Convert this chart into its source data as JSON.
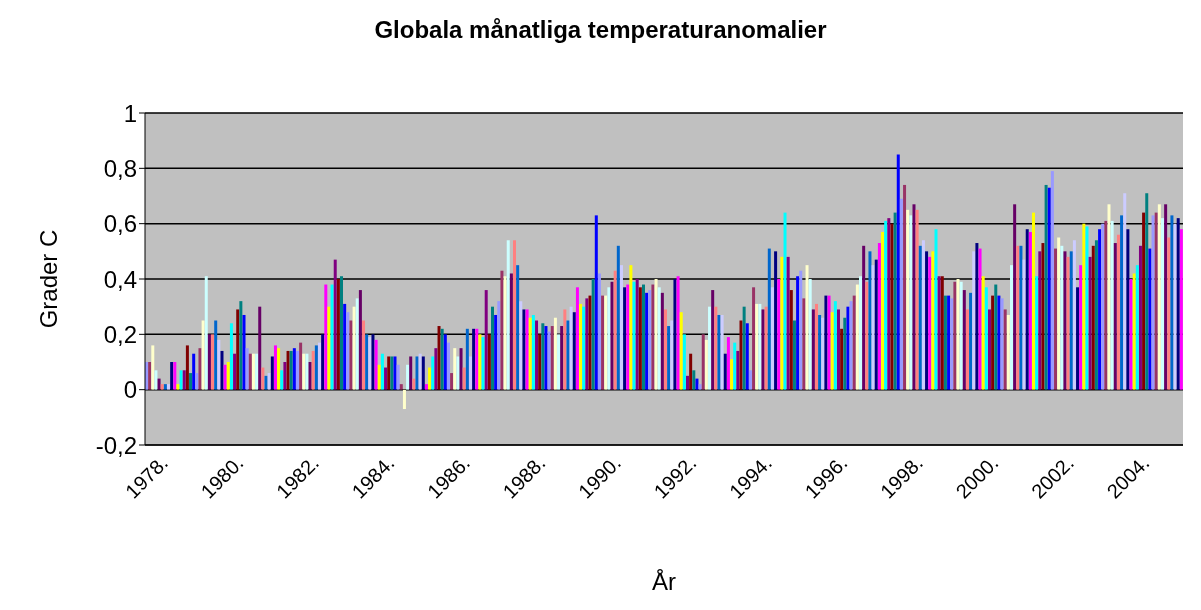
{
  "chart_data": {
    "type": "bar",
    "title": "Globala månatliga temperaturanomalier",
    "xlabel": "År",
    "ylabel": "Grader C",
    "categories": [
      "1978.",
      null,
      null,
      null,
      null,
      null,
      null,
      null,
      null,
      null,
      null,
      null,
      null,
      null,
      null,
      null,
      null,
      null,
      null,
      null,
      null,
      null,
      null,
      null,
      "1980.",
      null,
      null,
      null,
      null,
      null,
      null,
      null,
      null,
      null,
      null,
      null,
      null,
      null,
      null,
      null,
      null,
      null,
      null,
      null,
      null,
      null,
      null,
      null,
      "1982.",
      null,
      null,
      null,
      null,
      null,
      null,
      null,
      null,
      null,
      null,
      null,
      null,
      null,
      null,
      null,
      null,
      null,
      null,
      null,
      null,
      null,
      null,
      null,
      "1984.",
      null,
      null,
      null,
      null,
      null,
      null,
      null,
      null,
      null,
      null,
      null,
      null,
      null,
      null,
      null,
      null,
      null,
      null,
      null,
      null,
      null,
      null,
      null,
      "1986.",
      null,
      null,
      null,
      null,
      null,
      null,
      null,
      null,
      null,
      null,
      null,
      null,
      null,
      null,
      null,
      null,
      null,
      null,
      null,
      null,
      null,
      null,
      null,
      "1988.",
      null,
      null,
      null,
      null,
      null,
      null,
      null,
      null,
      null,
      null,
      null,
      null,
      null,
      null,
      null,
      null,
      null,
      null,
      null,
      null,
      null,
      null,
      null,
      "1990.",
      null,
      null,
      null,
      null,
      null,
      null,
      null,
      null,
      null,
      null,
      null,
      null,
      null,
      null,
      null,
      null,
      null,
      null,
      null,
      null,
      null,
      null,
      null,
      "1992.",
      null,
      null,
      null,
      null,
      null,
      null,
      null,
      null,
      null,
      null,
      null,
      null,
      null,
      null,
      null,
      null,
      null,
      null,
      null,
      null,
      null,
      null,
      null,
      "1994.",
      null,
      null,
      null,
      null,
      null,
      null,
      null,
      null,
      null,
      null,
      null,
      null,
      null,
      null,
      null,
      null,
      null,
      null,
      null,
      null,
      null,
      null,
      null,
      "1996.",
      null,
      null,
      null,
      null,
      null,
      null,
      null,
      null,
      null,
      null,
      null,
      null,
      null,
      null,
      null,
      null,
      null,
      null,
      null,
      null,
      null,
      null,
      null,
      "1998.",
      null,
      null,
      null,
      null,
      null,
      null,
      null,
      null,
      null,
      null,
      null,
      null,
      null,
      null,
      null,
      null,
      null,
      null,
      null,
      null,
      null,
      null,
      null,
      "2000.",
      null,
      null,
      null,
      null,
      null,
      null,
      null,
      null,
      null,
      null,
      null,
      null,
      null,
      null,
      null,
      null,
      null,
      null,
      null,
      null,
      null,
      null,
      null,
      "2002.",
      null,
      null,
      null,
      null,
      null,
      null,
      null,
      null,
      null,
      null,
      null,
      null,
      null,
      null,
      null,
      null,
      null,
      null,
      null,
      null,
      null,
      null,
      null,
      "2004.",
      null,
      null,
      null,
      null,
      null,
      null,
      null,
      null,
      null,
      null,
      null,
      null,
      null,
      null,
      null,
      null,
      null
    ],
    "values": [
      0.1,
      0.1,
      0.16,
      0.07,
      0.04,
      0.02,
      0.02,
      0.02,
      0.1,
      0.1,
      0.02,
      0.07,
      0.07,
      0.16,
      0.06,
      0.13,
      0.06,
      0.15,
      0.25,
      0.41,
      0.2,
      0.2,
      0.25,
      0.18,
      0.14,
      0.09,
      0.1,
      0.24,
      0.13,
      0.29,
      0.32,
      0.27,
      0.15,
      0.13,
      0.13,
      0.13,
      0.3,
      0.08,
      0.05,
      0.06,
      0.12,
      0.16,
      0.15,
      0.07,
      0.1,
      0.14,
      0.14,
      0.15,
      0.14,
      0.17,
      0.13,
      0.13,
      0.1,
      0.14,
      0.16,
      0.17,
      0.2,
      0.38,
      0.3,
      0.38,
      0.47,
      0.4,
      0.41,
      0.31,
      0.28,
      0.25,
      0.3,
      0.33,
      0.36,
      0.25,
      0.2,
      0.19,
      0.2,
      0.18,
      0.09,
      0.13,
      0.08,
      0.12,
      0.12,
      0.12,
      0.09,
      0.02,
      -0.07,
      0.09,
      0.12,
      0.04,
      0.12,
      0.13,
      0.12,
      0.02,
      0.08,
      0.12,
      0.15,
      0.23,
      0.22,
      0.2,
      0.17,
      0.06,
      0.15,
      0.12,
      0.15,
      0.08,
      0.22,
      0.12,
      0.22,
      0.22,
      0.2,
      0.19,
      0.36,
      0.2,
      0.3,
      0.27,
      0.32,
      0.43,
      0.41,
      0.54,
      0.42,
      0.54,
      0.45,
      0.32,
      0.29,
      0.29,
      0.26,
      0.27,
      0.25,
      0.2,
      0.24,
      0.23,
      0.21,
      0.23,
      0.26,
      0.2,
      0.23,
      0.29,
      0.25,
      0.3,
      0.28,
      0.37,
      0.31,
      0.3,
      0.33,
      0.34,
      0.4,
      0.63,
      0.42,
      0.34,
      0.34,
      0.37,
      0.39,
      0.43,
      0.52,
      0.45,
      0.37,
      0.38,
      0.45,
      0.39,
      0.4,
      0.37,
      0.38,
      0.35,
      0.36,
      0.38,
      0.4,
      0.37,
      0.35,
      0.29,
      0.23,
      0.25,
      0.4,
      0.41,
      0.28,
      0.2,
      0.05,
      0.13,
      0.07,
      0.04,
      0.02,
      0.2,
      0.18,
      0.3,
      0.36,
      0.3,
      0.27,
      0.27,
      0.13,
      0.19,
      0.11,
      0.17,
      0.14,
      0.25,
      0.3,
      0.24,
      0.07,
      0.37,
      0.31,
      0.31,
      0.29,
      0.3,
      0.51,
      0.37,
      0.5,
      0.4,
      0.48,
      0.64,
      0.48,
      0.36,
      0.25,
      0.41,
      0.43,
      0.33,
      0.45,
      0.4,
      0.29,
      0.31,
      0.27,
      0.26,
      0.34,
      0.34,
      0.28,
      0.32,
      0.29,
      0.22,
      0.26,
      0.3,
      0.32,
      0.34,
      0.38,
      0.41,
      0.52,
      0.39,
      0.5,
      0.45,
      0.47,
      0.53,
      0.57,
      0.61,
      0.62,
      0.6,
      0.64,
      0.85,
      0.69,
      0.74,
      0.65,
      0.63,
      0.67,
      0.65,
      0.52,
      0.54,
      0.5,
      0.48,
      0.5,
      0.58,
      0.41,
      0.41,
      0.34,
      0.34,
      0.33,
      0.39,
      0.4,
      0.39,
      0.36,
      0.29,
      0.35,
      0.5,
      0.53,
      0.51,
      0.41,
      0.37,
      0.29,
      0.34,
      0.38,
      0.34,
      0.33,
      0.29,
      0.27,
      0.45,
      0.67,
      0.52,
      0.52,
      0.47,
      0.58,
      0.57,
      0.64,
      0.41,
      0.5,
      0.53,
      0.74,
      0.73,
      0.79,
      0.51,
      0.55,
      0.52,
      0.5,
      0.48,
      0.5,
      0.54,
      0.37,
      0.45,
      0.6,
      0.59,
      0.48,
      0.52,
      0.54,
      0.58,
      0.6,
      0.61,
      0.67,
      0.61,
      0.53,
      0.56,
      0.63,
      0.71,
      0.58,
      0.4,
      0.42,
      0.45,
      0.52,
      0.64,
      0.71,
      0.51,
      0.63,
      0.64,
      0.67,
      0.62,
      0.67,
      0.55,
      0.63,
      0.6,
      0.62,
      0.58
    ],
    "colors": [
      "#9999ff",
      "#993366",
      "#ffffcc",
      "#ccffff",
      "#660066",
      "#ff8080",
      "#0066cc",
      "#ccccff",
      "#000080",
      "#ff00ff",
      "#ffff00",
      "#00ffff",
      "#800080",
      "#800000",
      "#008080",
      "#0000ff",
      "#9999ff",
      "#993366",
      "#ffffcc",
      "#ccffff",
      "#660066",
      "#ff8080",
      "#0066cc",
      "#ccccff",
      "#000080",
      "#ff00ff",
      "#ffff00",
      "#00ffff",
      "#800080",
      "#800000",
      "#008080",
      "#0000ff",
      "#9999ff",
      "#993366",
      "#ffffcc",
      "#ccffff",
      "#660066",
      "#ff8080",
      "#0066cc",
      "#ccccff",
      "#000080",
      "#ff00ff",
      "#ffff00",
      "#00ffff",
      "#800080",
      "#800000",
      "#008080",
      "#0000ff",
      "#9999ff",
      "#993366",
      "#ffffcc",
      "#ccffff",
      "#660066",
      "#ff8080",
      "#0066cc",
      "#ccccff",
      "#000080",
      "#ff00ff",
      "#ffff00",
      "#00ffff",
      "#800080",
      "#800000",
      "#008080",
      "#0000ff",
      "#9999ff",
      "#993366",
      "#ffffcc",
      "#ccffff",
      "#660066",
      "#ff8080",
      "#0066cc",
      "#ccccff",
      "#000080",
      "#ff00ff",
      "#ffff00",
      "#00ffff",
      "#800080",
      "#800000",
      "#008080",
      "#0000ff",
      "#9999ff",
      "#993366",
      "#ffffcc",
      "#ccffff",
      "#660066",
      "#ff8080",
      "#0066cc",
      "#ccccff",
      "#000080",
      "#ff00ff",
      "#ffff00",
      "#00ffff",
      "#800080",
      "#800000",
      "#008080",
      "#0000ff",
      "#9999ff",
      "#993366",
      "#ffffcc",
      "#ccffff",
      "#660066",
      "#ff8080",
      "#0066cc",
      "#ccccff",
      "#000080",
      "#ff00ff",
      "#ffff00",
      "#00ffff",
      "#800080",
      "#800000",
      "#008080",
      "#0000ff",
      "#9999ff",
      "#993366",
      "#ffffcc",
      "#ccffff",
      "#660066",
      "#ff8080",
      "#0066cc",
      "#ccccff",
      "#000080",
      "#ff00ff",
      "#ffff00",
      "#00ffff",
      "#800080",
      "#800000",
      "#008080",
      "#0000ff",
      "#9999ff",
      "#993366",
      "#ffffcc",
      "#ccffff",
      "#660066",
      "#ff8080",
      "#0066cc",
      "#ccccff",
      "#000080",
      "#ff00ff",
      "#ffff00",
      "#00ffff",
      "#800080",
      "#800000",
      "#008080",
      "#0000ff",
      "#9999ff",
      "#993366",
      "#ffffcc",
      "#ccffff",
      "#660066",
      "#ff8080",
      "#0066cc",
      "#ccccff",
      "#000080",
      "#ff00ff",
      "#ffff00",
      "#00ffff",
      "#800080",
      "#800000",
      "#008080",
      "#0000ff",
      "#9999ff",
      "#993366",
      "#ffffcc",
      "#ccffff",
      "#660066",
      "#ff8080",
      "#0066cc",
      "#ccccff",
      "#000080",
      "#ff00ff",
      "#ffff00",
      "#00ffff",
      "#800080",
      "#800000",
      "#008080",
      "#0000ff",
      "#9999ff",
      "#993366",
      "#ffffcc",
      "#ccffff",
      "#660066",
      "#ff8080",
      "#0066cc",
      "#ccccff",
      "#000080",
      "#ff00ff",
      "#ffff00",
      "#00ffff",
      "#800080",
      "#800000",
      "#008080",
      "#0000ff",
      "#9999ff",
      "#993366",
      "#ffffcc",
      "#ccffff",
      "#660066",
      "#ff8080",
      "#0066cc",
      "#ccccff",
      "#000080",
      "#ff00ff",
      "#ffff00",
      "#00ffff",
      "#800080",
      "#800000",
      "#008080",
      "#0000ff",
      "#9999ff",
      "#993366",
      "#ffffcc",
      "#ccffff",
      "#660066",
      "#ff8080",
      "#0066cc",
      "#ccccff",
      "#000080",
      "#ff00ff",
      "#ffff00",
      "#00ffff",
      "#800080",
      "#800000",
      "#008080",
      "#0000ff",
      "#9999ff",
      "#993366",
      "#ffffcc",
      "#ccffff",
      "#660066",
      "#ff8080",
      "#0066cc",
      "#ccccff",
      "#000080",
      "#ff00ff",
      "#ffff00",
      "#00ffff",
      "#800080",
      "#800000",
      "#008080",
      "#0000ff",
      "#9999ff",
      "#993366",
      "#ffffcc",
      "#ccffff",
      "#660066",
      "#ff8080",
      "#0066cc",
      "#ccccff",
      "#000080",
      "#ff00ff",
      "#ffff00",
      "#00ffff",
      "#800080",
      "#800000",
      "#008080",
      "#0000ff",
      "#9999ff",
      "#993366",
      "#ffffcc",
      "#ccffff",
      "#660066",
      "#ff8080",
      "#0066cc",
      "#ccccff",
      "#000080",
      "#ff00ff",
      "#ffff00",
      "#00ffff",
      "#800080",
      "#800000",
      "#008080",
      "#0000ff",
      "#9999ff",
      "#993366",
      "#ffffcc",
      "#ccffff",
      "#660066",
      "#ff8080",
      "#0066cc",
      "#ccccff",
      "#000080",
      "#ff00ff",
      "#ffff00",
      "#00ffff",
      "#800080",
      "#800000",
      "#008080",
      "#0000ff",
      "#9999ff",
      "#993366",
      "#ffffcc",
      "#ccffff",
      "#660066",
      "#ff8080",
      "#0066cc",
      "#ccccff",
      "#000080",
      "#ff00ff",
      "#ffff00",
      "#00ffff",
      "#800080",
      "#800000",
      "#008080",
      "#0000ff",
      "#9999ff",
      "#993366",
      "#ffffcc",
      "#ccffff",
      "#660066",
      "#ff8080",
      "#0066cc",
      "#ccccff",
      "#000080",
      "#ff00ff",
      "#ffff00",
      "#00ffff",
      "#800080",
      "#800000",
      "#008080",
      "#0000ff",
      "#9999ff",
      "#993366",
      "#ffffcc",
      "#ccffff",
      "#660066",
      "#ff8080",
      "#0066cc",
      "#ccccff",
      "#000080",
      "#ff00ff"
    ],
    "ylim": [
      -0.2,
      1
    ],
    "yticks": [
      {
        "value": -0.2,
        "label": "-0,2"
      },
      0,
      {
        "value": 0.2,
        "label": "0,2"
      },
      {
        "value": 0.4,
        "label": "0,4"
      },
      {
        "value": 0.6,
        "label": "0,6"
      },
      {
        "value": 0.8,
        "label": "0,8"
      },
      1
    ],
    "grid": "y"
  }
}
